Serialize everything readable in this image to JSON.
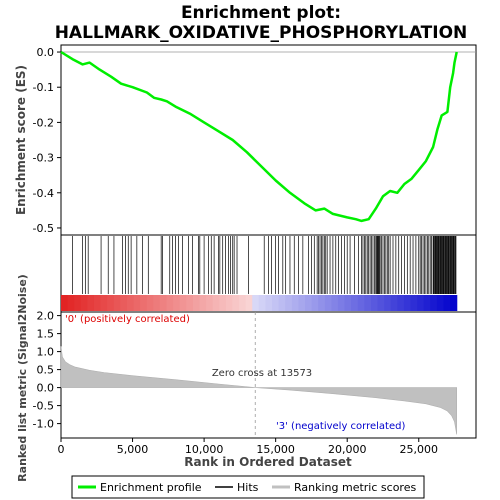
{
  "chart_data": {
    "type": "line",
    "title_line1": "Enrichment plot:",
    "title_line2": "HALLMARK_OXIDATIVE_PHOSPHORYLATION",
    "top_panel": {
      "ylabel": "Enrichment score (ES)",
      "ylim": [
        -0.52,
        0.02
      ],
      "yticks": [
        0.0,
        -0.1,
        -0.2,
        -0.3,
        -0.4,
        -0.5
      ],
      "ytick_labels": [
        "0.0",
        "-0.1",
        "-0.2",
        "-0.3",
        "-0.4",
        "-0.5"
      ],
      "series": [
        {
          "name": "Enrichment profile",
          "color": "#00ee00",
          "x": [
            0,
            800,
            1500,
            2000,
            2700,
            3500,
            4200,
            5000,
            6000,
            6500,
            7000,
            7400,
            8000,
            9000,
            10000,
            11000,
            12000,
            13000,
            14000,
            15000,
            16000,
            17000,
            17800,
            18400,
            19000,
            20000,
            20600,
            21000,
            21500,
            22000,
            22500,
            23000,
            23500,
            24000,
            24500,
            25000,
            25500,
            26000,
            26300,
            26600,
            27000,
            27200,
            27400,
            27500,
            27650
          ],
          "y": [
            0.0,
            -0.02,
            -0.035,
            -0.03,
            -0.05,
            -0.07,
            -0.09,
            -0.1,
            -0.115,
            -0.13,
            -0.135,
            -0.14,
            -0.155,
            -0.175,
            -0.2,
            -0.225,
            -0.25,
            -0.285,
            -0.325,
            -0.365,
            -0.4,
            -0.43,
            -0.45,
            -0.445,
            -0.46,
            -0.47,
            -0.475,
            -0.48,
            -0.475,
            -0.445,
            -0.41,
            -0.395,
            -0.4,
            -0.375,
            -0.36,
            -0.335,
            -0.31,
            -0.27,
            -0.22,
            -0.18,
            -0.17,
            -0.1,
            -0.06,
            -0.03,
            0.0
          ]
        }
      ]
    },
    "hits_panel": {
      "name": "Hits",
      "hit_ranks": [
        800,
        1500,
        1700,
        1900,
        2800,
        3300,
        3700,
        4300,
        4500,
        4700,
        4900,
        5300,
        5700,
        6100,
        7000,
        7100,
        7600,
        7800,
        8000,
        8200,
        8500,
        8900,
        9200,
        9600,
        9700,
        10000,
        10300,
        10500,
        10700,
        11000,
        11100,
        11300,
        11500,
        11700,
        11850,
        12000,
        12100,
        12300,
        13100,
        14200,
        14500,
        14700,
        15000,
        15200,
        15500,
        15700,
        16000,
        16300,
        16600,
        16900,
        17300,
        17500,
        17700,
        17900,
        18000,
        18100,
        18200,
        18300,
        18400,
        18500,
        18600,
        18800,
        19000,
        19200,
        19400,
        19600,
        19800,
        20000,
        20200,
        20500,
        20800,
        21000,
        21100,
        21200,
        21300,
        21400,
        21500,
        21600,
        21700,
        21800,
        21900,
        22000,
        22050,
        22100,
        22150,
        22200,
        22250,
        22300,
        22400,
        22500,
        22600,
        22700,
        22800,
        22900,
        23000,
        23200,
        23400,
        23600,
        23800,
        24000,
        24200,
        24400,
        24600,
        24800,
        25000,
        25100,
        25200,
        25300,
        25400,
        25500,
        25600,
        25700,
        25800,
        25900,
        26000,
        26050,
        26100,
        26150,
        26200,
        26250,
        26300,
        26350,
        26400,
        26450,
        26500,
        26550,
        26600,
        26650,
        26700,
        26750,
        26800,
        26850,
        26900,
        26950,
        27000,
        27050,
        27100,
        27150,
        27200,
        27250,
        27300,
        27350,
        27400,
        27450,
        27500,
        27550,
        27600
      ]
    },
    "bottom_panel": {
      "ylabel": "Ranked list metric (Signal2Noise)",
      "xlabel": "Rank in Ordered Dataset",
      "series_name": "Ranking metric scores",
      "ylim": [
        -1.4,
        2.1
      ],
      "yticks": [
        2.0,
        1.5,
        1.0,
        0.5,
        0.0,
        -0.5,
        -1.0
      ],
      "ytick_labels": [
        "2.0",
        "1.5",
        "1.0",
        "0.5",
        "0.0",
        "-0.5",
        "-1.0"
      ],
      "xlim": [
        0,
        29000
      ],
      "xticks": [
        0,
        5000,
        10000,
        15000,
        20000,
        25000
      ],
      "xtick_labels": [
        "0",
        "5,000",
        "10,000",
        "15,000",
        "20,000",
        "25,000"
      ],
      "metric_x": [
        0,
        100,
        300,
        600,
        1000,
        2000,
        3000,
        5000,
        8000,
        11000,
        13573,
        16000,
        19000,
        22000,
        24000,
        25500,
        26500,
        27000,
        27300,
        27500,
        27650
      ],
      "metric_y": [
        1.15,
        0.85,
        0.72,
        0.64,
        0.57,
        0.48,
        0.42,
        0.33,
        0.22,
        0.1,
        0.0,
        -0.07,
        -0.17,
        -0.28,
        -0.37,
        -0.45,
        -0.55,
        -0.65,
        -0.78,
        -0.95,
        -1.3
      ],
      "zero_cross_rank": 13573,
      "zero_cross_label": "Zero cross at 13573",
      "pos_label": "'0' (positively correlated)",
      "neg_label": "'3' (negatively correlated)",
      "pos_color": "#dd0000",
      "neg_color": "#0000cc"
    },
    "legend": {
      "placement": "bottom",
      "items": [
        {
          "label": "Enrichment profile",
          "color": "#00ee00"
        },
        {
          "label": "Hits",
          "color": "#000000"
        },
        {
          "label": "Ranking metric scores",
          "color": "#c0c0c0"
        }
      ]
    },
    "n_genes": 27650
  }
}
